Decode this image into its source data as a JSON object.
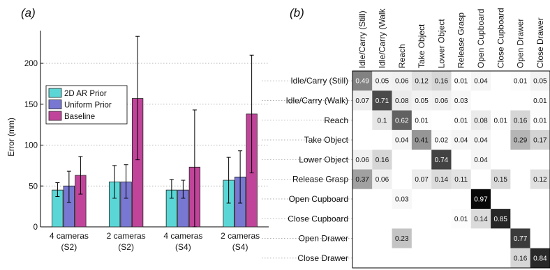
{
  "panels": {
    "a": "(a)",
    "b": "(b)"
  },
  "chart_data": [
    {
      "type": "bar",
      "panel": "(a)",
      "ylabel": "Error (mm)",
      "ylim": [
        0,
        240
      ],
      "yticks": [
        0,
        50,
        100,
        150,
        200
      ],
      "grid": "horizontal dotted",
      "legend_placement": "top-left",
      "categories": [
        [
          "4 cameras",
          "(S2)"
        ],
        [
          "2 cameras",
          "(S2)"
        ],
        [
          "4 cameras",
          "(S4)"
        ],
        [
          "2 cameras",
          "(S4)"
        ]
      ],
      "series": [
        {
          "name": "2D AR Prior",
          "color": "#5bd6d6",
          "values": [
            45,
            55,
            45,
            57
          ],
          "err_upper": [
            54,
            75,
            58,
            85
          ],
          "err_lower": [
            37,
            35,
            35,
            29
          ]
        },
        {
          "name": "Uniform Prior",
          "color": "#7878d2",
          "values": [
            50,
            55,
            45,
            61
          ],
          "err_upper": [
            68,
            76,
            57,
            93
          ],
          "err_lower": [
            30,
            35,
            35,
            29
          ]
        },
        {
          "name": "Baseline",
          "color": "#c0449a",
          "values": [
            63,
            157,
            73,
            138
          ],
          "err_upper": [
            86,
            233,
            143,
            210
          ],
          "err_lower": [
            40,
            82,
            0,
            66
          ]
        }
      ]
    },
    {
      "type": "heatmap",
      "panel": "(b)",
      "labels": [
        "Idle/Carry (Still)",
        "Idle/Carry (Walk)",
        "Reach",
        "Take Object",
        "Lower Object",
        "Release Grasp",
        "Open Cupboard",
        "Close Cupboard",
        "Open Drawer",
        "Close Drawer"
      ],
      "column_labels": [
        "Idle/Carry (Still)",
        "Idle/Carry (Walk",
        "Reach",
        "Take Object",
        "Lower Object",
        "Release Grasp",
        "Open Cupboard",
        "Close Cupboard",
        "Open Drawer",
        "Close Drawer"
      ],
      "matrix": [
        [
          0.49,
          0.05,
          0.06,
          0.12,
          0.16,
          0.01,
          0.04,
          null,
          0.01,
          0.05
        ],
        [
          0.07,
          0.71,
          0.08,
          0.05,
          0.06,
          0.03,
          null,
          null,
          null,
          0.01
        ],
        [
          null,
          0.1,
          0.62,
          0.01,
          null,
          0.01,
          0.08,
          0.01,
          0.16,
          0.01
        ],
        [
          null,
          null,
          0.04,
          0.41,
          0.02,
          0.04,
          0.04,
          null,
          0.29,
          0.17
        ],
        [
          0.06,
          0.16,
          null,
          null,
          0.74,
          null,
          0.04,
          null,
          null,
          null
        ],
        [
          0.37,
          0.06,
          null,
          0.07,
          0.14,
          0.11,
          null,
          0.15,
          null,
          0.12
        ],
        [
          null,
          null,
          0.03,
          null,
          null,
          null,
          0.97,
          null,
          null,
          null
        ],
        [
          null,
          null,
          null,
          null,
          null,
          0.01,
          0.14,
          0.85,
          null,
          null
        ],
        [
          null,
          null,
          0.23,
          null,
          null,
          null,
          null,
          null,
          0.77,
          null
        ],
        [
          null,
          null,
          null,
          null,
          null,
          null,
          null,
          null,
          0.16,
          0.84
        ]
      ]
    }
  ]
}
